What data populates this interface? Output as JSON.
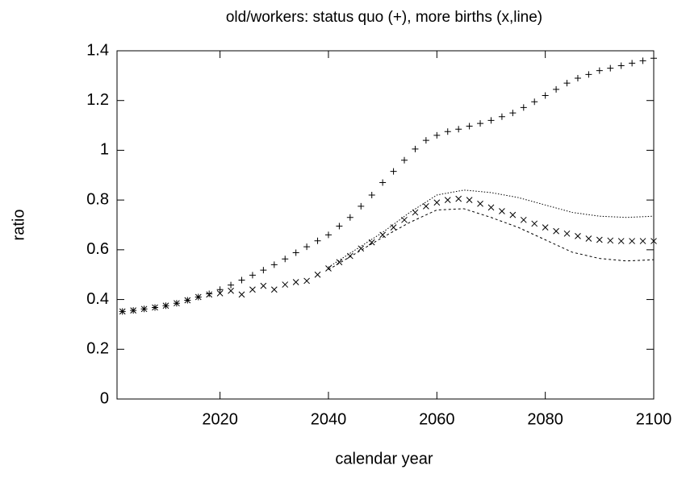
{
  "chart_data": {
    "type": "scatter",
    "title": "old/workers: status quo (+), more births (x,line)",
    "x_label": "calendar year",
    "y_label": "ratio",
    "xlim": [
      2001,
      2100
    ],
    "xticks": [
      2020,
      2040,
      2060,
      2080,
      2100
    ],
    "ylim": [
      0,
      1.4
    ],
    "yticks": [
      0,
      0.2,
      0.4,
      0.6,
      0.8,
      1,
      1.2,
      1.4
    ],
    "series": [
      {
        "style": "plus",
        "color": "#000000",
        "x": [
          2002,
          2004,
          2006,
          2008,
          2010,
          2012,
          2014,
          2016,
          2018,
          2020,
          2022,
          2024,
          2026,
          2028,
          2030,
          2032,
          2034,
          2036,
          2038,
          2040,
          2042,
          2044,
          2046,
          2048,
          2050,
          2052,
          2054,
          2056,
          2058,
          2060,
          2062,
          2064,
          2066,
          2068,
          2070,
          2072,
          2074,
          2076,
          2078,
          2080,
          2082,
          2084,
          2086,
          2088,
          2090,
          2092,
          2094,
          2096,
          2098,
          2100
        ],
        "values": [
          0.352,
          0.356,
          0.362,
          0.368,
          0.375,
          0.385,
          0.397,
          0.41,
          0.423,
          0.44,
          0.458,
          0.478,
          0.498,
          0.518,
          0.54,
          0.563,
          0.588,
          0.612,
          0.636,
          0.66,
          0.695,
          0.73,
          0.775,
          0.82,
          0.87,
          0.915,
          0.96,
          1.005,
          1.04,
          1.06,
          1.075,
          1.085,
          1.097,
          1.108,
          1.12,
          1.135,
          1.15,
          1.172,
          1.195,
          1.22,
          1.245,
          1.27,
          1.29,
          1.305,
          1.32,
          1.33,
          1.34,
          1.35,
          1.36,
          1.37
        ]
      },
      {
        "style": "cross",
        "color": "#000000",
        "x": [
          2002,
          2004,
          2006,
          2008,
          2010,
          2012,
          2014,
          2016,
          2018,
          2020,
          2022,
          2024,
          2026,
          2028,
          2030,
          2032,
          2034,
          2036,
          2038,
          2040,
          2042,
          2044,
          2046,
          2048,
          2050,
          2052,
          2054,
          2056,
          2058,
          2060,
          2062,
          2064,
          2066,
          2068,
          2070,
          2072,
          2074,
          2076,
          2078,
          2080,
          2082,
          2084,
          2086,
          2088,
          2090,
          2092,
          2094,
          2096,
          2098,
          2100
        ],
        "values": [
          0.352,
          0.356,
          0.362,
          0.368,
          0.375,
          0.385,
          0.397,
          0.41,
          0.42,
          0.425,
          0.435,
          0.42,
          0.44,
          0.455,
          0.44,
          0.46,
          0.47,
          0.475,
          0.5,
          0.525,
          0.55,
          0.575,
          0.605,
          0.63,
          0.66,
          0.69,
          0.72,
          0.75,
          0.775,
          0.79,
          0.8,
          0.805,
          0.8,
          0.785,
          0.77,
          0.755,
          0.74,
          0.72,
          0.705,
          0.69,
          0.675,
          0.665,
          0.655,
          0.645,
          0.64,
          0.637,
          0.635,
          0.635,
          0.635,
          0.635
        ]
      },
      {
        "style": "dotted",
        "color": "#000000",
        "x": [
          2040,
          2045,
          2050,
          2055,
          2060,
          2065,
          2070,
          2075,
          2080,
          2085,
          2090,
          2095,
          2100
        ],
        "values": [
          0.53,
          0.6,
          0.67,
          0.75,
          0.82,
          0.84,
          0.83,
          0.81,
          0.78,
          0.75,
          0.735,
          0.73,
          0.735
        ]
      },
      {
        "style": "dashed",
        "color": "#000000",
        "x": [
          2040,
          2045,
          2050,
          2055,
          2060,
          2065,
          2070,
          2075,
          2080,
          2085,
          2090,
          2095,
          2100
        ],
        "values": [
          0.52,
          0.585,
          0.65,
          0.71,
          0.76,
          0.765,
          0.73,
          0.69,
          0.64,
          0.59,
          0.565,
          0.555,
          0.56
        ]
      }
    ]
  }
}
